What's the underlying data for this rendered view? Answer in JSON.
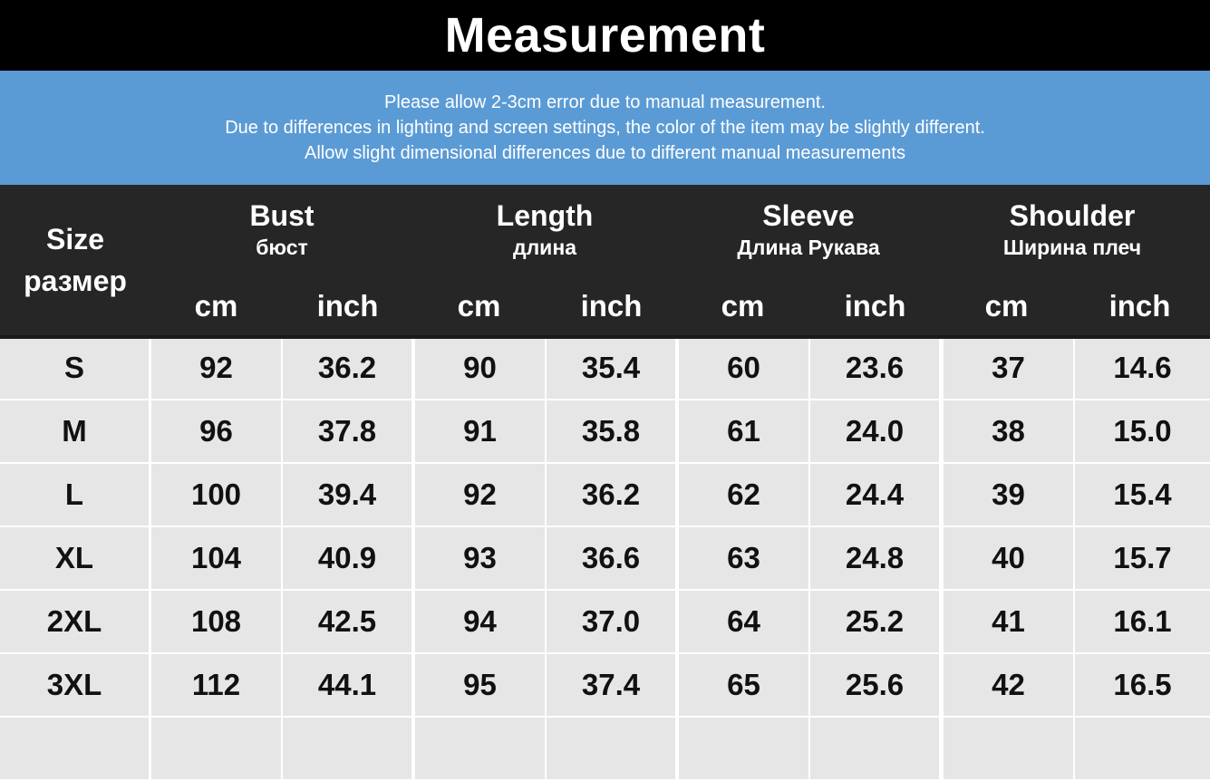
{
  "title": "Measurement",
  "notice": [
    "Please allow 2-3cm error due to manual measurement.",
    "Due to differences in lighting and screen settings, the color of the item may be slightly different.",
    "Allow slight dimensional differences due to different manual measurements"
  ],
  "header": {
    "size_en": "Size",
    "size_ru": "размер",
    "groups": [
      {
        "en": "Bust",
        "ru": "бюст"
      },
      {
        "en": "Length",
        "ru": "длина"
      },
      {
        "en": "Sleeve",
        "ru": "Длина Рукава"
      },
      {
        "en": "Shoulder",
        "ru": "Ширина плеч"
      }
    ],
    "unit_cm": "cm",
    "unit_inch": "inch"
  },
  "rows": [
    {
      "size": "S",
      "values": [
        "92",
        "36.2",
        "90",
        "35.4",
        "60",
        "23.6",
        "37",
        "14.6"
      ]
    },
    {
      "size": "M",
      "values": [
        "96",
        "37.8",
        "91",
        "35.8",
        "61",
        "24.0",
        "38",
        "15.0"
      ]
    },
    {
      "size": "L",
      "values": [
        "100",
        "39.4",
        "92",
        "36.2",
        "62",
        "24.4",
        "39",
        "15.4"
      ]
    },
    {
      "size": "XL",
      "values": [
        "104",
        "40.9",
        "93",
        "36.6",
        "63",
        "24.8",
        "40",
        "15.7"
      ]
    },
    {
      "size": "2XL",
      "values": [
        "108",
        "42.5",
        "94",
        "37.0",
        "64",
        "25.2",
        "41",
        "16.1"
      ]
    },
    {
      "size": "3XL",
      "values": [
        "112",
        "44.1",
        "95",
        "37.4",
        "65",
        "25.6",
        "42",
        "16.5"
      ]
    }
  ],
  "colors": {
    "title_bg": "#000000",
    "notice_bg": "#5b9bd5",
    "header_bg": "#262626",
    "cell_bg": "#e6e6e6"
  }
}
